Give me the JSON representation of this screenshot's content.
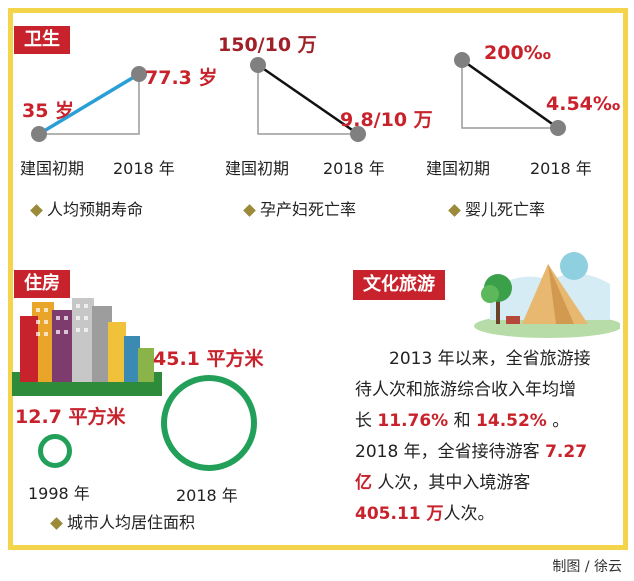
{
  "sections": {
    "health": {
      "title": "卫生",
      "charts": [
        {
          "start_value": "35 岁",
          "end_value": "77.3 岁",
          "start_label": "建国初期",
          "end_label": "2018 年",
          "caption": "人均预期寿命",
          "trend": "up",
          "line_color": "#2a9fd6"
        },
        {
          "start_value": "150/10 万",
          "end_value": "9.8/10 万",
          "start_label": "建国初期",
          "end_label": "2018 年",
          "caption": "孕产妇死亡率",
          "trend": "down",
          "line_color": "#111111"
        },
        {
          "start_value": "200‰",
          "end_value": "4.54‰",
          "start_label": "建国初期",
          "end_label": "2018 年",
          "caption": "婴儿死亡率",
          "trend": "down",
          "line_color": "#111111"
        }
      ]
    },
    "housing": {
      "title": "住房",
      "small_value": "12.7 平方米",
      "small_label": "1998 年",
      "large_value": "45.1 平方米",
      "large_label": "2018 年",
      "caption": "城市人均居住面积",
      "circle_color": "#22a05a"
    },
    "tourism": {
      "title": "文化旅游",
      "line1_a": "2013 年以来，全省旅游接",
      "line2_a": "待人次和旅游综合收入年均增",
      "line3_a": "长",
      "line3_h1": "11.76%",
      "line3_b": "和",
      "line3_h2": "14.52%",
      "line3_c": "。",
      "line4_a": "2018 年，全省接待游客",
      "line4_h": "7.27",
      "line5_h": "亿",
      "line5_a": "人次，其中入境游客",
      "line6_h": "405.11 万",
      "line6_a": "人次。"
    }
  },
  "credit": "制图 / 徐云",
  "colors": {
    "accent_red": "#c8232c",
    "frame_yellow": "#f4d44a",
    "dot_gray": "#808080",
    "axis_gray": "#9a9a9a"
  }
}
